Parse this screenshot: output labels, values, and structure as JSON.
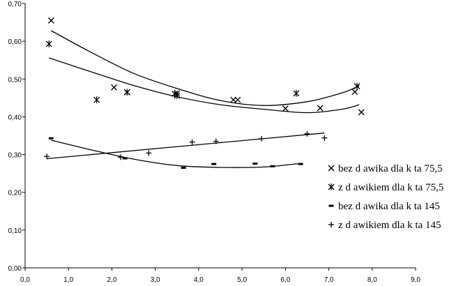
{
  "chart_data": {
    "type": "scatter",
    "title": "",
    "xlabel": "",
    "ylabel": "",
    "xlim": [
      0,
      9
    ],
    "ylim": [
      0,
      0.7
    ],
    "xticks": [
      "0,0",
      "1,0",
      "2,0",
      "3,0",
      "4,0",
      "5,0",
      "6,0",
      "7,0",
      "8,0",
      "9,0"
    ],
    "yticks": [
      "0,00",
      "0,10",
      "0,20",
      "0,30",
      "0,40",
      "0,50",
      "0,60",
      "0,70"
    ],
    "series": [
      {
        "name": "bez d awika dla k  ta 75,5",
        "marker": "x",
        "x": [
          0.6,
          2.05,
          2.35,
          3.5,
          4.8,
          4.9,
          6.0,
          6.8,
          7.6,
          7.75
        ],
        "y": [
          0.655,
          0.478,
          0.465,
          0.462,
          0.445,
          0.445,
          0.422,
          0.423,
          0.466,
          0.412
        ],
        "trend": {
          "x": [
            0.6,
            1.5,
            2.5,
            3.5,
            4.5,
            5.5,
            6.5,
            7.3,
            7.7
          ],
          "y": [
            0.628,
            0.572,
            0.515,
            0.475,
            0.443,
            0.43,
            0.44,
            0.463,
            0.482
          ]
        }
      },
      {
        "name": "z d awikiem dla k  ta 75,5",
        "marker": "asterisk",
        "x": [
          0.55,
          1.65,
          2.35,
          3.45,
          3.5,
          6.25,
          7.65
        ],
        "y": [
          0.593,
          0.445,
          0.465,
          0.461,
          0.456,
          0.462,
          0.481
        ],
        "trend": {
          "x": [
            0.55,
            1.5,
            2.5,
            3.5,
            4.5,
            5.5,
            6.5,
            7.3,
            7.7
          ],
          "y": [
            0.556,
            0.52,
            0.483,
            0.453,
            0.432,
            0.42,
            0.411,
            0.42,
            0.432
          ]
        }
      },
      {
        "name": "bez d awika dla k  ta 145",
        "marker": "dash",
        "x": [
          0.6,
          2.3,
          3.65,
          4.35,
          5.3,
          5.7,
          6.35
        ],
        "y": [
          0.343,
          0.29,
          0.265,
          0.275,
          0.276,
          0.269,
          0.275
        ],
        "trend": {
          "x": [
            0.6,
            1.5,
            2.5,
            3.5,
            4.5,
            5.5,
            6.3
          ],
          "y": [
            0.338,
            0.313,
            0.288,
            0.271,
            0.266,
            0.267,
            0.276
          ]
        }
      },
      {
        "name": "z d awikiem dla k  ta 145",
        "marker": "plus",
        "x": [
          0.5,
          2.2,
          2.85,
          3.85,
          4.4,
          5.45,
          6.5,
          6.9
        ],
        "y": [
          0.295,
          0.293,
          0.304,
          0.333,
          0.335,
          0.342,
          0.355,
          0.344
        ],
        "trend": {
          "x": [
            0.5,
            6.9
          ],
          "y": [
            0.289,
            0.357
          ]
        }
      }
    ],
    "legend_position": "right"
  }
}
